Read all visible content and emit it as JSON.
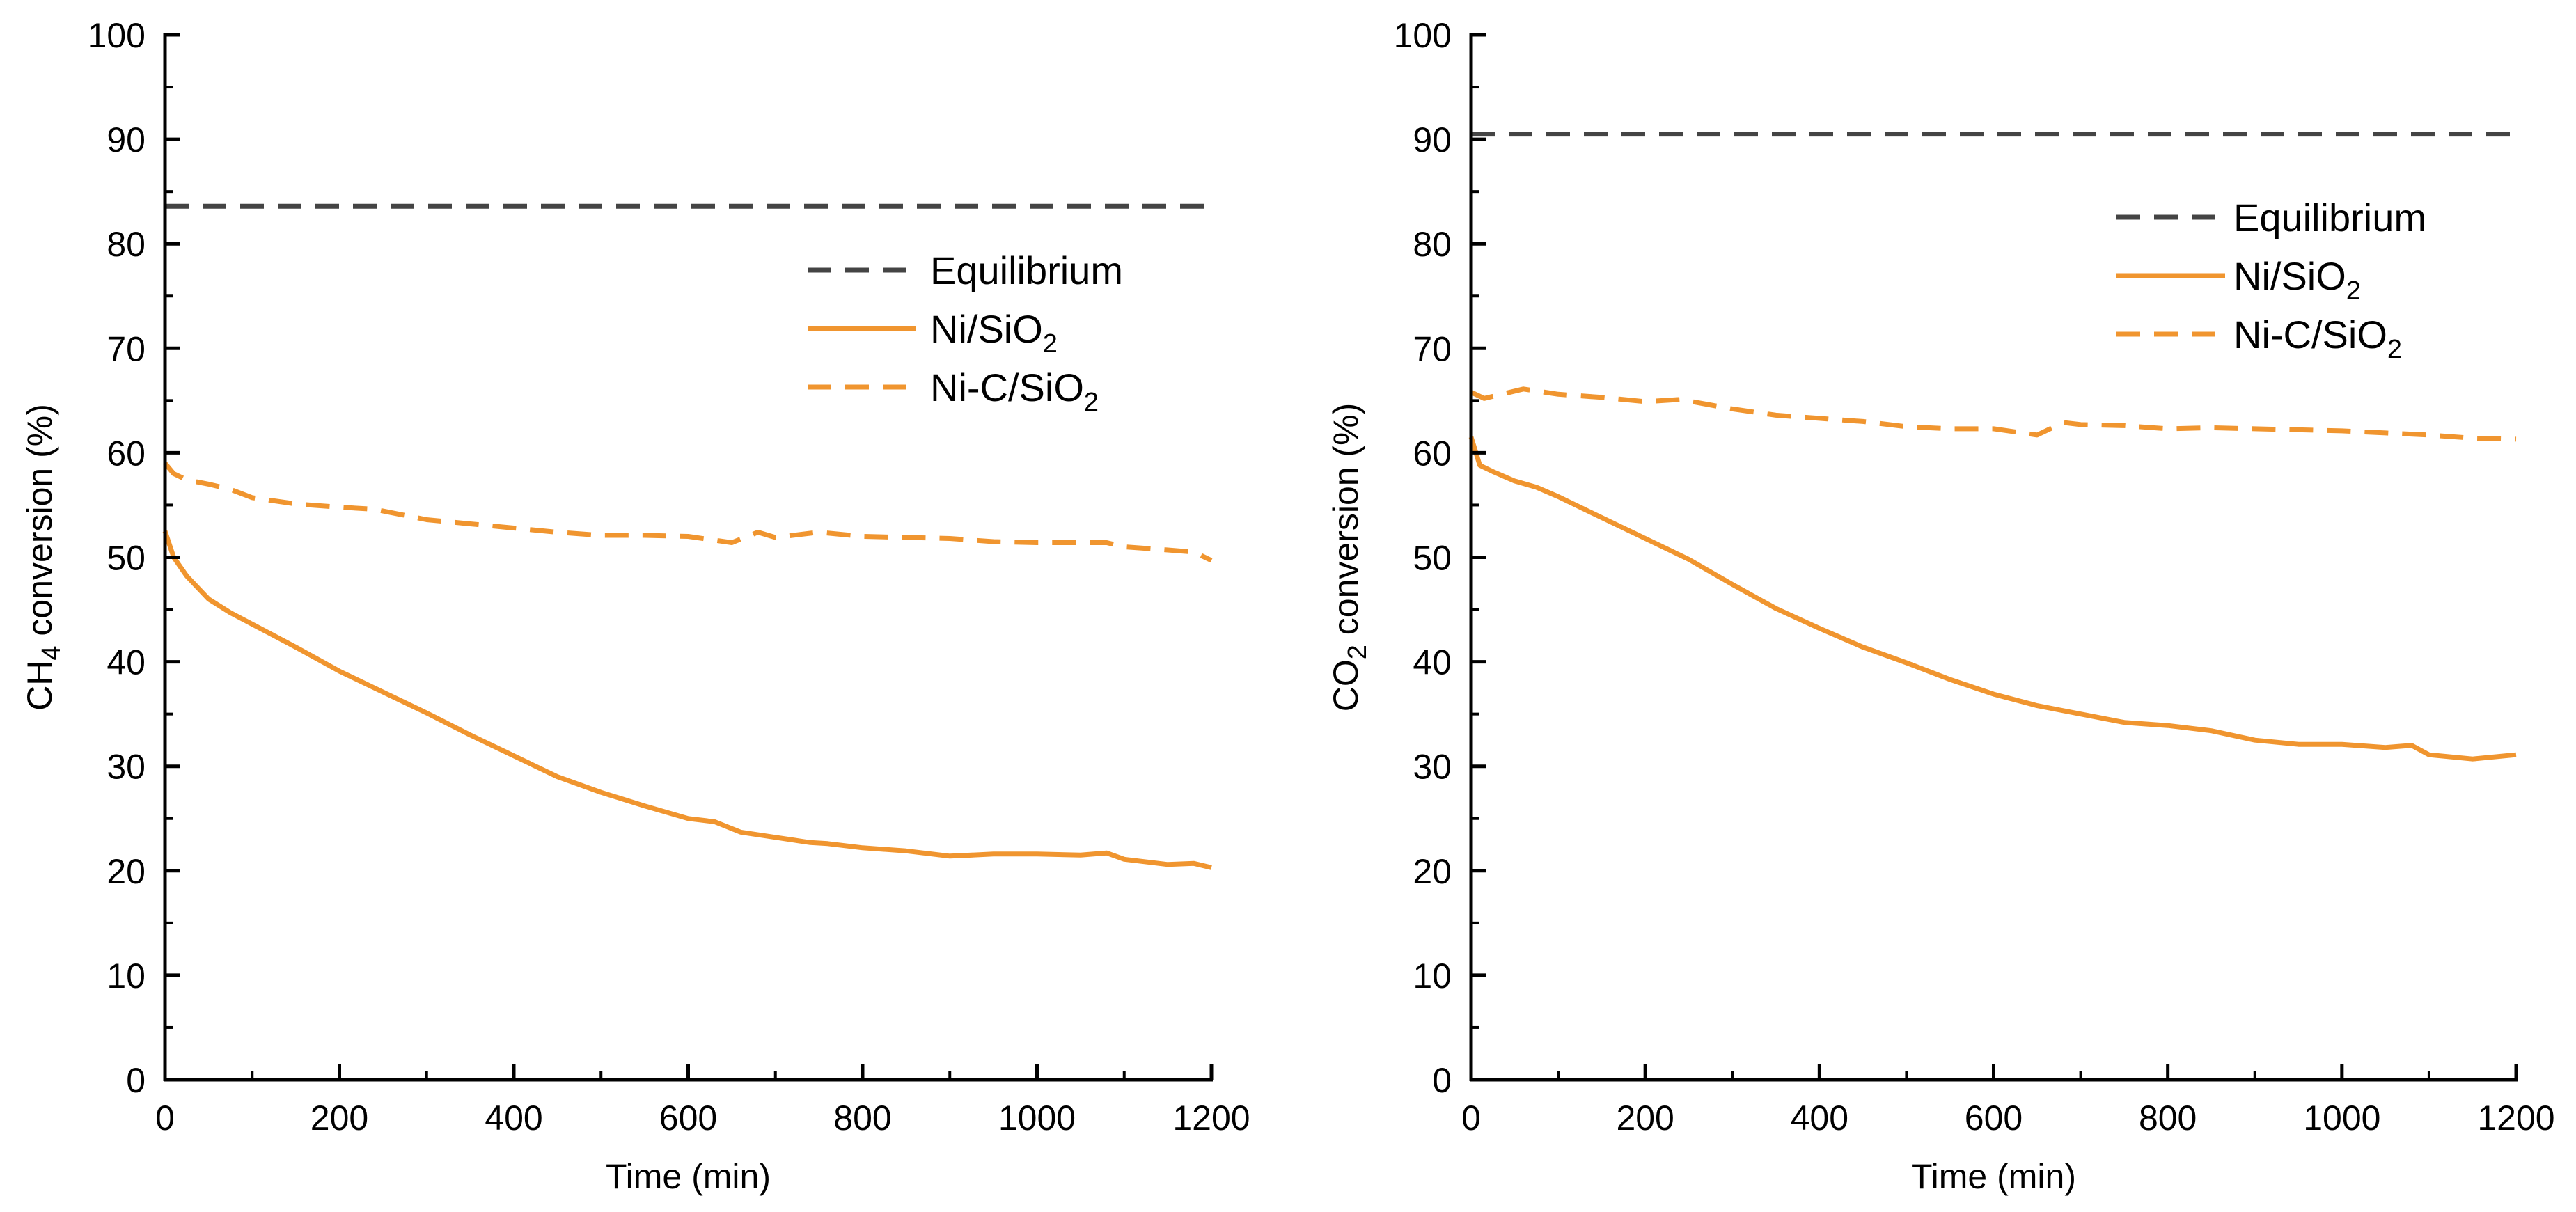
{
  "colors": {
    "equilibrium": "#444444",
    "orange": "#F0952F",
    "axis": "#000000"
  },
  "chart_data": [
    {
      "type": "line",
      "id": "ch4",
      "xlabel": "Time (min)",
      "ylabel": {
        "main": "CH",
        "sub": "4",
        "rest": " conversion (%)"
      },
      "xlim": [
        0,
        1200
      ],
      "ylim": [
        0,
        100
      ],
      "xticks": [
        0,
        200,
        400,
        600,
        800,
        1000,
        1200
      ],
      "yticks": [
        0,
        10,
        20,
        30,
        40,
        50,
        60,
        70,
        80,
        90,
        100
      ],
      "legend_position": "upper-right",
      "series": [
        {
          "name": "Equilibrium",
          "label": {
            "main": "Equilibrium",
            "sub": ""
          },
          "style": "dash",
          "color": "#444444",
          "x": [
            0,
            1200
          ],
          "y": [
            83.6,
            83.6
          ]
        },
        {
          "name": "Ni/SiO2",
          "label": {
            "main": "Ni/SiO",
            "sub": "2"
          },
          "style": "solid",
          "color": "#F0952F",
          "x": [
            0,
            10,
            25,
            50,
            75,
            100,
            150,
            200,
            240,
            300,
            350,
            400,
            450,
            500,
            550,
            600,
            630,
            660,
            700,
            740,
            760,
            800,
            850,
            900,
            950,
            1000,
            1050,
            1080,
            1100,
            1150,
            1180,
            1200
          ],
          "y": [
            52.5,
            50,
            48.2,
            46,
            44.7,
            43.6,
            41.4,
            39.1,
            37.5,
            35.1,
            33,
            31,
            29,
            27.5,
            26.2,
            25,
            24.7,
            23.7,
            23.2,
            22.7,
            22.6,
            22.2,
            21.9,
            21.4,
            21.6,
            21.6,
            21.5,
            21.7,
            21.1,
            20.6,
            20.7,
            20.3
          ]
        },
        {
          "name": "Ni-C/SiO2",
          "label": {
            "main": "Ni-C/SiO",
            "sub": "2"
          },
          "style": "dash",
          "color": "#F0952F",
          "x": [
            0,
            10,
            25,
            50,
            75,
            100,
            150,
            200,
            240,
            300,
            350,
            400,
            450,
            500,
            550,
            600,
            650,
            680,
            700,
            750,
            800,
            850,
            900,
            950,
            1000,
            1050,
            1080,
            1100,
            1150,
            1180,
            1200
          ],
          "y": [
            59,
            58,
            57.4,
            57,
            56.5,
            55.7,
            55.1,
            54.8,
            54.6,
            53.6,
            53.2,
            52.8,
            52.4,
            52.1,
            52.1,
            52,
            51.4,
            52.4,
            51.9,
            52.4,
            52,
            51.9,
            51.8,
            51.5,
            51.4,
            51.4,
            51.4,
            51,
            50.7,
            50.5,
            49.7
          ]
        }
      ]
    },
    {
      "type": "line",
      "id": "co2",
      "xlabel": "Time (min)",
      "ylabel": {
        "main": "CO",
        "sub": "2",
        "rest": " conversion (%)"
      },
      "xlim": [
        0,
        1200
      ],
      "ylim": [
        0,
        100
      ],
      "xticks": [
        0,
        200,
        400,
        600,
        800,
        1000,
        1200
      ],
      "yticks": [
        0,
        10,
        20,
        30,
        40,
        50,
        60,
        70,
        80,
        90,
        100
      ],
      "legend_position": "upper-right",
      "series": [
        {
          "name": "Equilibrium",
          "label": {
            "main": "Equilibrium",
            "sub": ""
          },
          "style": "dash",
          "color": "#444444",
          "x": [
            0,
            1200
          ],
          "y": [
            90.5,
            90.5
          ]
        },
        {
          "name": "Ni/SiO2",
          "label": {
            "main": "Ni/SiO",
            "sub": "2"
          },
          "style": "solid",
          "color": "#F0952F",
          "x": [
            0,
            10,
            25,
            50,
            75,
            100,
            150,
            200,
            250,
            300,
            350,
            400,
            450,
            500,
            550,
            600,
            650,
            700,
            750,
            800,
            850,
            900,
            950,
            1000,
            1050,
            1080,
            1100,
            1150,
            1200
          ],
          "y": [
            61.5,
            58.8,
            58.2,
            57.3,
            56.7,
            55.8,
            53.8,
            51.8,
            49.8,
            47.4,
            45.1,
            43.2,
            41.4,
            39.9,
            38.3,
            36.9,
            35.8,
            35,
            34.2,
            33.9,
            33.4,
            32.5,
            32.1,
            32.1,
            31.8,
            32,
            31.1,
            30.7,
            31.1
          ]
        },
        {
          "name": "Ni-C/SiO2",
          "label": {
            "main": "Ni-C/SiO",
            "sub": "2"
          },
          "style": "dash",
          "color": "#F0952F",
          "x": [
            0,
            15,
            30,
            60,
            100,
            150,
            200,
            240,
            300,
            350,
            400,
            450,
            500,
            550,
            600,
            650,
            680,
            700,
            750,
            800,
            850,
            900,
            950,
            1000,
            1050,
            1100,
            1150,
            1200
          ],
          "y": [
            65.8,
            65.2,
            65.5,
            66.1,
            65.6,
            65.3,
            64.9,
            65.1,
            64.2,
            63.6,
            63.3,
            63,
            62.5,
            62.3,
            62.3,
            61.7,
            62.9,
            62.7,
            62.6,
            62.3,
            62.4,
            62.3,
            62.2,
            62.1,
            61.9,
            61.7,
            61.4,
            61.3
          ]
        }
      ]
    }
  ]
}
